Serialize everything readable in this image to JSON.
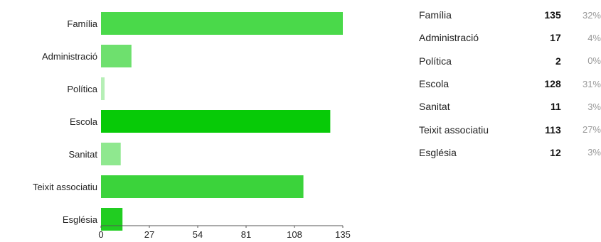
{
  "chart_data": {
    "type": "bar",
    "orientation": "horizontal",
    "categories": [
      "Família",
      "Administració",
      "Política",
      "Escola",
      "Sanitat",
      "Teixit associatiu",
      "Església"
    ],
    "values": [
      135,
      17,
      2,
      128,
      11,
      113,
      12
    ],
    "percentages": [
      "32%",
      "4%",
      "0%",
      "31%",
      "3%",
      "27%",
      "3%"
    ],
    "bar_colors": [
      "#4ad94a",
      "#6ee06e",
      "#b6efb6",
      "#07ca07",
      "#8fe88f",
      "#3bd33b",
      "#21cd21"
    ],
    "xticks": [
      "0",
      "27",
      "54",
      "81",
      "108",
      "135"
    ],
    "xlim": [
      0,
      135
    ],
    "grid": false,
    "legend": "table-right"
  }
}
